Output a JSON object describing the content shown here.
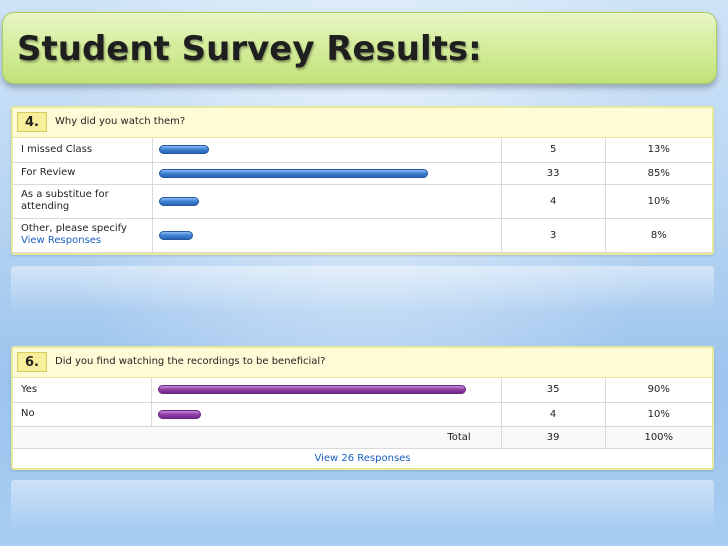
{
  "slide": {
    "title": "Student Survey Results:"
  },
  "question4": {
    "number": "4.",
    "text": "Why did you watch them?",
    "rows": [
      {
        "label": "I missed Class",
        "count": "5",
        "percent": "13%",
        "value": 13
      },
      {
        "label": "For Review",
        "count": "33",
        "percent": "85%",
        "value": 85
      },
      {
        "label": "As a substitue for attending",
        "count": "4",
        "percent": "10%",
        "value": 10
      },
      {
        "label": "Other, please specify",
        "link": "View Responses",
        "count": "3",
        "percent": "8%",
        "value": 8
      }
    ]
  },
  "question6": {
    "number": "6.",
    "text": "Did you find watching the recordings to be beneficial?",
    "rows": [
      {
        "label": "Yes",
        "count": "35",
        "percent": "90%",
        "value": 90
      },
      {
        "label": "No",
        "count": "4",
        "percent": "10%",
        "value": 10
      }
    ],
    "total": {
      "label": "Total",
      "count": "39",
      "percent": "100%"
    },
    "footer_link": "View 26 Responses"
  },
  "colors": {
    "bar_q4": "#3d7fd3",
    "bar_q6": "#8f3da6",
    "title_bar": "#d6ee9e",
    "header_bg": "#fffbd6"
  }
}
